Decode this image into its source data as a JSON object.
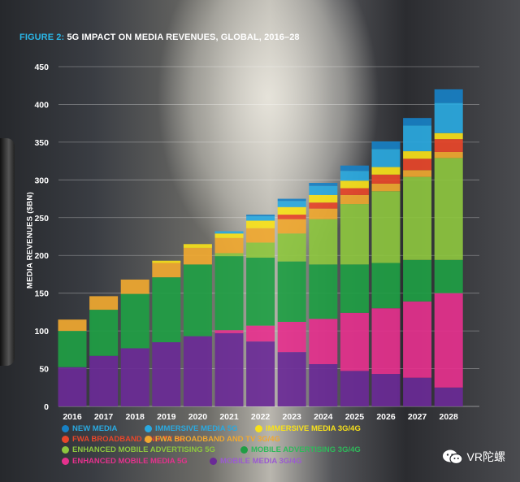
{
  "title_prefix": "FIGURE 2:",
  "title_main": "5G IMPACT ON MEDIA REVENUES, GLOBAL, 2016–28",
  "watermark": "VR陀螺",
  "chart_data": {
    "type": "bar",
    "stacked": true,
    "title": "5G IMPACT ON MEDIA REVENUES, GLOBAL, 2016–28",
    "ylabel": "MEDIA REVENUES ($BN)",
    "xlabel": "",
    "ylim": [
      0,
      450
    ],
    "yticks": [
      0,
      50,
      100,
      150,
      200,
      250,
      300,
      350,
      400,
      450
    ],
    "grid": true,
    "legend_position": "bottom",
    "categories": [
      "2016",
      "2017",
      "2018",
      "2019",
      "2020",
      "2021",
      "2022",
      "2023",
      "2024",
      "2025",
      "2026",
      "2027",
      "2028"
    ],
    "series": [
      {
        "name": "MOBILE MEDIA 3G/4G",
        "color": "#6a2a96",
        "values": [
          52,
          67,
          77,
          85,
          93,
          97,
          86,
          72,
          56,
          47,
          43,
          38,
          25
        ]
      },
      {
        "name": "ENHANCED MOBILE MEDIA 5G",
        "color": "#e5318d",
        "values": [
          0,
          0,
          0,
          0,
          0,
          4,
          21,
          40,
          60,
          77,
          87,
          101,
          125
        ]
      },
      {
        "name": "MOBILE ADVERTISING 3G/4G",
        "color": "#1f9e44",
        "values": [
          48,
          61,
          72,
          86,
          95,
          98,
          90,
          80,
          72,
          64,
          60,
          55,
          44
        ]
      },
      {
        "name": "ENHANCED MOBILE ADVERTISING 5G",
        "color": "#8dc63f",
        "values": [
          0,
          0,
          0,
          0,
          0,
          4,
          20,
          37,
          60,
          80,
          95,
          110,
          135
        ]
      },
      {
        "name": "FWA BROADBAND AND TV 3G/4G",
        "color": "#f0a830",
        "values": [
          15,
          18,
          19,
          19,
          22,
          20,
          19,
          19,
          14,
          12,
          10,
          9,
          8
        ]
      },
      {
        "name": "FWA BROADBAND AND TV 5G",
        "color": "#e8462a",
        "values": [
          0,
          0,
          0,
          0,
          0,
          0,
          0,
          6,
          8,
          9,
          12,
          15,
          17
        ]
      },
      {
        "name": "IMMERSIVE MEDIA 3G/4G",
        "color": "#f7e11a",
        "values": [
          0,
          0,
          0,
          3,
          5,
          6,
          10,
          10,
          10,
          10,
          10,
          10,
          8
        ]
      },
      {
        "name": "IMMERSIVE MEDIA 5G",
        "color": "#2aa9e0",
        "values": [
          0,
          0,
          0,
          0,
          0,
          3,
          6,
          8,
          12,
          13,
          24,
          34,
          40
        ]
      },
      {
        "name": "NEW MEDIA",
        "color": "#1780c4",
        "values": [
          0,
          0,
          0,
          0,
          0,
          0,
          2,
          3,
          4,
          7,
          10,
          10,
          18
        ]
      }
    ]
  },
  "legend": [
    {
      "label": "NEW MEDIA",
      "color": "#1780c4",
      "text_color": "#2aa9e0"
    },
    {
      "label": "IMMERSIVE MEDIA 5G",
      "color": "#2aa9e0",
      "text_color": "#2aa9e0"
    },
    {
      "label": "IMMERSIVE MEDIA 3G/4G",
      "color": "#f7e11a",
      "text_color": "#f7e11a"
    },
    {
      "label": "FWA BROADBAND AND TV 5G",
      "color": "#e8462a",
      "text_color": "#e8462a"
    },
    {
      "label": "FWA BROADBAND AND TV 3G/4G",
      "color": "#f0a830",
      "text_color": "#f0a830"
    },
    {
      "label": "ENHANCED MOBILE ADVERTISING 5G",
      "color": "#8dc63f",
      "text_color": "#8dc63f"
    },
    {
      "label": "MOBILE ADVERTISING 3G/4G",
      "color": "#1f9e44",
      "text_color": "#2fb85a"
    },
    {
      "label": "ENHANCED MOBILE MEDIA 5G",
      "color": "#e5318d",
      "text_color": "#e5318d"
    },
    {
      "label": "MOBILE MEDIA 3G/4G",
      "color": "#6a2a96",
      "text_color": "#9b5bd0"
    }
  ]
}
